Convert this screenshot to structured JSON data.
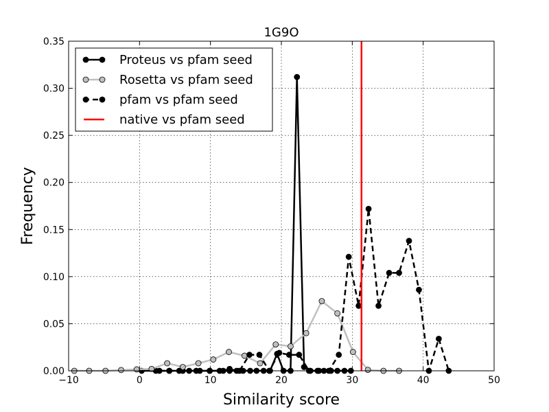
{
  "chart_data": {
    "type": "line",
    "title": "1G9O",
    "xlabel": "Similarity score",
    "ylabel": "Frequency",
    "xlim": [
      -10,
      50
    ],
    "ylim": [
      0,
      0.35
    ],
    "xticks": [
      -10,
      0,
      10,
      20,
      30,
      40,
      50
    ],
    "xtick_labels": [
      "−10",
      "0",
      "10",
      "20",
      "30",
      "40",
      "50"
    ],
    "yticks": [
      0,
      0.05,
      0.1,
      0.15,
      0.2,
      0.25,
      0.3,
      0.35
    ],
    "ytick_labels": [
      "0.00",
      "0.05",
      "0.10",
      "0.15",
      "0.20",
      "0.25",
      "0.30",
      "0.35"
    ],
    "grid": true,
    "legend_position": "top-left",
    "series": [
      {
        "name": "Proteus vs pfam seed",
        "color": "#000000",
        "marker_fill": "#000000",
        "dash": "solid",
        "x": [
          0.3,
          2.3,
          4.2,
          6.1,
          8.0,
          9.9,
          11.8,
          12.7,
          13.7,
          14.6,
          15.6,
          16.5,
          17.5,
          18.4,
          19.4,
          20.3,
          21.3,
          22.2,
          23.2,
          24.1,
          25.1,
          26.0,
          27.0,
          27.9,
          28.9,
          29.8
        ],
        "y": [
          0,
          0,
          0,
          0,
          0,
          0,
          0,
          0.002,
          0,
          0,
          0,
          0,
          0,
          0,
          0.018,
          0,
          0,
          0.312,
          0.004,
          0,
          0,
          0,
          0,
          0,
          0,
          0
        ]
      },
      {
        "name": "Rosetta vs pfam seed",
        "color": "#bfbfbf",
        "marker_fill": "#bfbfbf",
        "dash": "solid",
        "x": [
          -9.2,
          -7.1,
          -4.8,
          -2.6,
          -0.4,
          1.7,
          3.9,
          6.1,
          8.3,
          10.4,
          12.6,
          14.8,
          17.0,
          19.2,
          21.3,
          23.5,
          25.7,
          27.9,
          30.1,
          32.2,
          34.4,
          36.6
        ],
        "y": [
          0,
          0,
          0,
          0.0008,
          0.0015,
          0.002,
          0.008,
          0.004,
          0.008,
          0.012,
          0.02,
          0.016,
          0.008,
          0.028,
          0.026,
          0.04,
          0.074,
          0.061,
          0.02,
          0.001,
          0,
          0
        ]
      },
      {
        "name": "pfam vs pfam seed",
        "color": "#000000",
        "marker_fill": "#000000",
        "dash": "dashed",
        "x": [
          2.8,
          4.2,
          5.6,
          7.0,
          8.5,
          9.9,
          11.3,
          12.7,
          14.1,
          15.5,
          16.9,
          18.3,
          19.7,
          21.1,
          22.5,
          23.9,
          25.3,
          26.7,
          28.1,
          29.5,
          30.9,
          32.3,
          33.7,
          35.2,
          36.6,
          38.0,
          39.4,
          40.8,
          42.2,
          43.6
        ],
        "y": [
          0,
          0,
          0,
          0,
          0,
          0,
          0,
          0,
          0,
          0.017,
          0.017,
          0,
          0.019,
          0.017,
          0.017,
          0,
          0,
          0,
          0.017,
          0.121,
          0.069,
          0.172,
          0.069,
          0.104,
          0.104,
          0.138,
          0.086,
          0,
          0.034,
          0
        ]
      },
      {
        "name": "native vs pfam seed",
        "color": "#ff0000",
        "type": "vline",
        "x": 31.3
      }
    ]
  }
}
